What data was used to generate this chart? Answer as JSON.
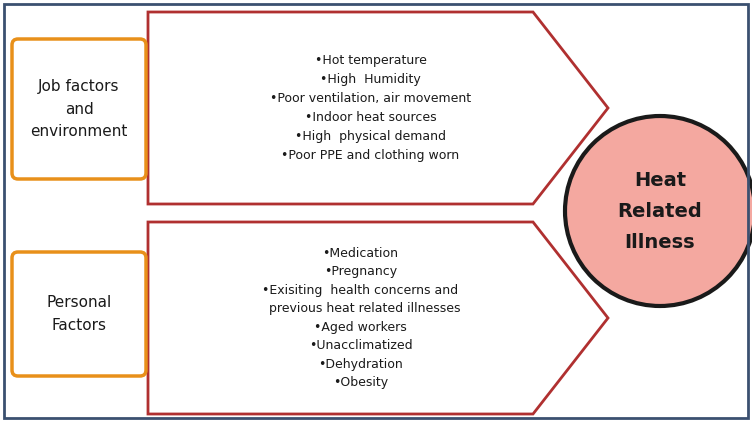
{
  "fig_bg": "#ffffff",
  "border_color": "#3b5070",
  "box1_label": "Job factors\nand\nenvironment",
  "box2_label": "Personal\nFactors",
  "box_edge_color": "#e8901a",
  "box_face_color": "#ffffff",
  "arrow_edge_color": "#b03030",
  "arrow_face_color": "#ffffff",
  "circle_fill": "#f4a8a0",
  "circle_edge": "#1a1a1a",
  "circle_text": "Heat\nRelated\nIllness",
  "circle_text_color": "#1a1a1a",
  "bullet1": [
    "•Hot temperature",
    "•High  Humidity",
    "•Poor ventilation, air movement",
    "•Indoor heat sources",
    "•High  physical demand",
    "•Poor PPE and clothing worn"
  ],
  "bullet2": [
    "•Medication",
    "•Pregnancy",
    "•Exisiting  health concerns and",
    "  previous heat related illnesses",
    "•Aged workers",
    "•Unacclimatized",
    "•Dehydration",
    "•Obesity"
  ]
}
